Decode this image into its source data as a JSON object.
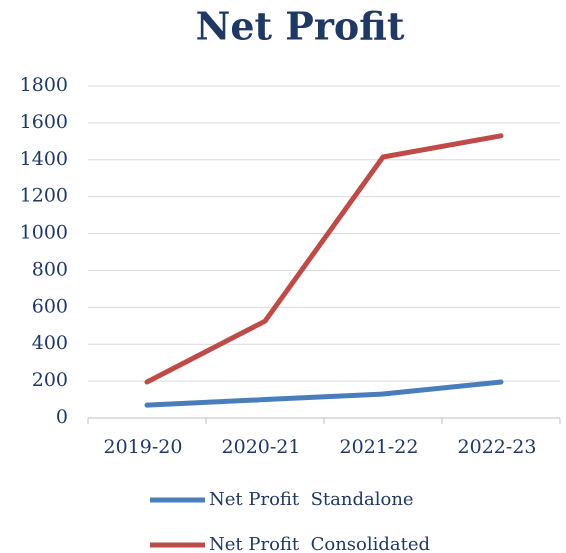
{
  "chart_data": {
    "type": "line",
    "title": "Net Profit",
    "categories": [
      "2019-20",
      "2020-21",
      "2021-22",
      "2022-23"
    ],
    "series": [
      {
        "name": "Net Profit  Standalone",
        "color": "#4a7ebb",
        "values": [
          70,
          100,
          130,
          195
        ]
      },
      {
        "name": "Net Profit  Consolidated",
        "color": "#be4b48",
        "values": [
          195,
          525,
          1415,
          1530
        ]
      }
    ],
    "ylim": [
      0,
      1800
    ],
    "yticks": [
      0,
      200,
      400,
      600,
      800,
      1000,
      1200,
      1400,
      1600,
      1800
    ],
    "grid": true
  }
}
